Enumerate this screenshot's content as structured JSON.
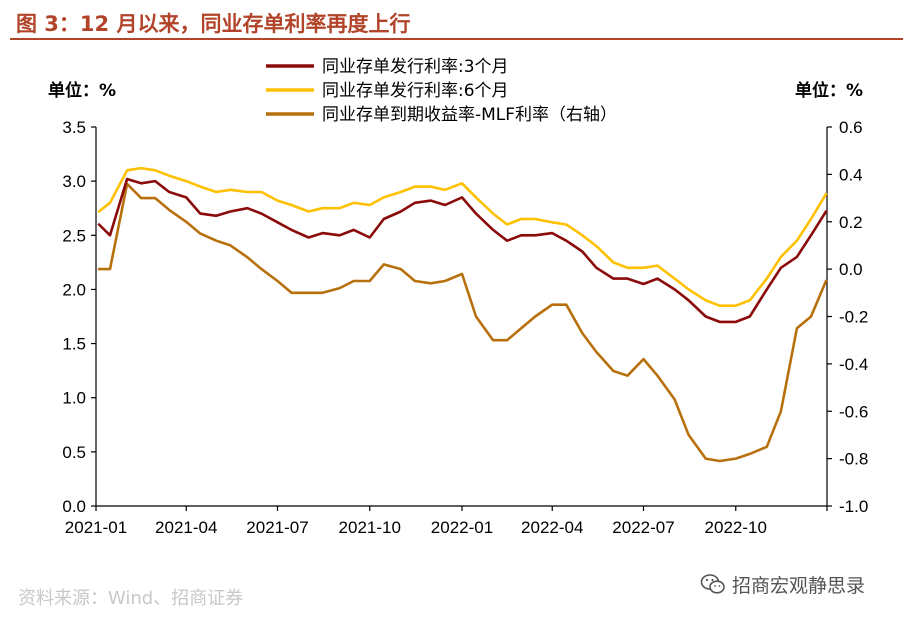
{
  "header": {
    "title": "图 3：12 月以来，同业存单利率再度上行"
  },
  "units": {
    "left": "单位：%",
    "right": "单位：%"
  },
  "footer": {
    "source": "资料来源：Wind、招商证券",
    "watermark": "招商宏观静思录"
  },
  "colors": {
    "title": "#b2442a",
    "series_3m": "#8b0b0b",
    "series_6m": "#ffc000",
    "series_spread": "#b8700c"
  },
  "chart_data": {
    "type": "line",
    "x_ticks": [
      "2021-01",
      "2021-04",
      "2021-07",
      "2021-10",
      "2022-01",
      "2022-04",
      "2022-07",
      "2022-10"
    ],
    "xlim": [
      "2021-01",
      "2022-12-31"
    ],
    "y_left": {
      "lim": [
        0,
        3.5
      ],
      "ticks": [
        "0.0",
        "0.5",
        "1.0",
        "1.5",
        "2.0",
        "2.5",
        "3.0",
        "3.5"
      ]
    },
    "y_right": {
      "lim": [
        -1.0,
        0.6
      ],
      "ticks": [
        "-1.0",
        "-0.8",
        "-0.6",
        "-0.4",
        "-0.2",
        "0.0",
        "0.2",
        "0.4",
        "0.6"
      ]
    },
    "legend_position": "top-center",
    "series": [
      {
        "name": "同业存单发行利率:3个月",
        "axis": "left",
        "color": "#8b0b0b",
        "x": [
          "2021-01-04",
          "2021-01-15",
          "2021-02-01",
          "2021-02-15",
          "2021-03-01",
          "2021-03-15",
          "2021-04-01",
          "2021-04-15",
          "2021-05-01",
          "2021-05-15",
          "2021-06-01",
          "2021-06-15",
          "2021-07-01",
          "2021-07-15",
          "2021-08-01",
          "2021-08-15",
          "2021-09-01",
          "2021-09-15",
          "2021-10-01",
          "2021-10-15",
          "2021-11-01",
          "2021-11-15",
          "2021-12-01",
          "2021-12-15",
          "2022-01-01",
          "2022-01-15",
          "2022-02-01",
          "2022-02-15",
          "2022-03-01",
          "2022-03-15",
          "2022-04-01",
          "2022-04-15",
          "2022-05-01",
          "2022-05-15",
          "2022-06-01",
          "2022-06-15",
          "2022-07-01",
          "2022-07-15",
          "2022-08-01",
          "2022-08-15",
          "2022-09-01",
          "2022-09-15",
          "2022-10-01",
          "2022-10-15",
          "2022-11-01",
          "2022-11-15",
          "2022-12-01",
          "2022-12-15",
          "2022-12-30"
        ],
        "y": [
          2.6,
          2.5,
          3.02,
          2.98,
          3.0,
          2.9,
          2.85,
          2.7,
          2.68,
          2.72,
          2.75,
          2.7,
          2.62,
          2.55,
          2.48,
          2.52,
          2.5,
          2.55,
          2.48,
          2.65,
          2.72,
          2.8,
          2.82,
          2.78,
          2.85,
          2.7,
          2.55,
          2.45,
          2.5,
          2.5,
          2.52,
          2.45,
          2.35,
          2.2,
          2.1,
          2.1,
          2.05,
          2.1,
          2.0,
          1.9,
          1.75,
          1.7,
          1.7,
          1.75,
          2.0,
          2.2,
          2.3,
          2.5,
          2.72
        ]
      },
      {
        "name": "同业存单发行利率:6个月",
        "axis": "left",
        "color": "#ffc000",
        "x": [
          "2021-01-04",
          "2021-01-15",
          "2021-02-01",
          "2021-02-15",
          "2021-03-01",
          "2021-03-15",
          "2021-04-01",
          "2021-04-15",
          "2021-05-01",
          "2021-05-15",
          "2021-06-01",
          "2021-06-15",
          "2021-07-01",
          "2021-07-15",
          "2021-08-01",
          "2021-08-15",
          "2021-09-01",
          "2021-09-15",
          "2021-10-01",
          "2021-10-15",
          "2021-11-01",
          "2021-11-15",
          "2021-12-01",
          "2021-12-15",
          "2022-01-01",
          "2022-01-15",
          "2022-02-01",
          "2022-02-15",
          "2022-03-01",
          "2022-03-15",
          "2022-04-01",
          "2022-04-15",
          "2022-05-01",
          "2022-05-15",
          "2022-06-01",
          "2022-06-15",
          "2022-07-01",
          "2022-07-15",
          "2022-08-01",
          "2022-08-15",
          "2022-09-01",
          "2022-09-15",
          "2022-10-01",
          "2022-10-15",
          "2022-11-01",
          "2022-11-15",
          "2022-12-01",
          "2022-12-15",
          "2022-12-30"
        ],
        "y": [
          2.72,
          2.8,
          3.1,
          3.12,
          3.1,
          3.05,
          3.0,
          2.95,
          2.9,
          2.92,
          2.9,
          2.9,
          2.82,
          2.78,
          2.72,
          2.75,
          2.75,
          2.8,
          2.78,
          2.85,
          2.9,
          2.95,
          2.95,
          2.92,
          2.98,
          2.85,
          2.7,
          2.6,
          2.65,
          2.65,
          2.62,
          2.6,
          2.5,
          2.4,
          2.25,
          2.2,
          2.2,
          2.22,
          2.1,
          2.0,
          1.9,
          1.85,
          1.85,
          1.9,
          2.1,
          2.3,
          2.45,
          2.65,
          2.88
        ]
      },
      {
        "name": "同业存单到期收益率-MLF利率（右轴）",
        "axis": "right",
        "color": "#b8700c",
        "x": [
          "2021-01-04",
          "2021-01-15",
          "2021-02-01",
          "2021-02-15",
          "2021-03-01",
          "2021-03-15",
          "2021-04-01",
          "2021-04-15",
          "2021-05-01",
          "2021-05-15",
          "2021-06-01",
          "2021-06-15",
          "2021-07-01",
          "2021-07-15",
          "2021-08-01",
          "2021-08-15",
          "2021-09-01",
          "2021-09-15",
          "2021-10-01",
          "2021-10-15",
          "2021-11-01",
          "2021-11-15",
          "2021-12-01",
          "2021-12-15",
          "2022-01-01",
          "2022-01-15",
          "2022-02-01",
          "2022-02-15",
          "2022-03-01",
          "2022-03-15",
          "2022-04-01",
          "2022-04-15",
          "2022-05-01",
          "2022-05-15",
          "2022-06-01",
          "2022-06-15",
          "2022-07-01",
          "2022-07-15",
          "2022-08-01",
          "2022-08-15",
          "2022-09-01",
          "2022-09-15",
          "2022-10-01",
          "2022-10-15",
          "2022-11-01",
          "2022-11-15",
          "2022-12-01",
          "2022-12-15",
          "2022-12-30"
        ],
        "y": [
          0.0,
          0.0,
          0.36,
          0.3,
          0.3,
          0.25,
          0.2,
          0.15,
          0.12,
          0.1,
          0.05,
          0.0,
          -0.05,
          -0.1,
          -0.1,
          -0.1,
          -0.08,
          -0.05,
          -0.05,
          0.02,
          0.0,
          -0.05,
          -0.06,
          -0.05,
          -0.02,
          -0.2,
          -0.3,
          -0.3,
          -0.25,
          -0.2,
          -0.15,
          -0.15,
          -0.27,
          -0.35,
          -0.43,
          -0.45,
          -0.38,
          -0.45,
          -0.55,
          -0.7,
          -0.8,
          -0.81,
          -0.8,
          -0.78,
          -0.75,
          -0.6,
          -0.25,
          -0.2,
          -0.05
        ]
      }
    ]
  }
}
